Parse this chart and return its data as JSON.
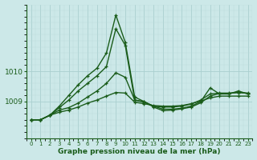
{
  "title": "Graphe pression niveau de la mer (hPa)",
  "bg_color": "#cce8e8",
  "grid_color_major": "#aacfcf",
  "grid_color_minor": "#bbdada",
  "line_color": "#1a5c1a",
  "xlim": [
    -0.5,
    23.5
  ],
  "ylim": [
    1007.8,
    1012.2
  ],
  "yticks": [
    1009,
    1010
  ],
  "xticks": [
    0,
    1,
    2,
    3,
    4,
    5,
    6,
    7,
    8,
    9,
    10,
    11,
    12,
    13,
    14,
    15,
    16,
    17,
    18,
    19,
    20,
    21,
    22,
    23
  ],
  "series": [
    [
      1008.4,
      1008.4,
      1008.55,
      1008.8,
      1009.05,
      1009.35,
      1009.6,
      1009.85,
      1010.15,
      1011.4,
      1010.85,
      1009.05,
      1009.0,
      1008.85,
      1008.75,
      1008.75,
      1008.78,
      1008.85,
      1009.0,
      1009.45,
      1009.25,
      1009.25,
      1009.35,
      1009.25
    ],
    [
      1008.4,
      1008.4,
      1008.55,
      1008.85,
      1009.2,
      1009.55,
      1009.85,
      1010.1,
      1010.6,
      1011.85,
      1010.95,
      1009.15,
      1009.0,
      1008.82,
      1008.7,
      1008.72,
      1008.76,
      1008.82,
      1008.96,
      1009.18,
      1009.27,
      1009.27,
      1009.3,
      1009.27
    ],
    [
      1008.4,
      1008.4,
      1008.55,
      1008.72,
      1008.8,
      1008.95,
      1009.15,
      1009.35,
      1009.6,
      1009.95,
      1009.8,
      1009.05,
      1008.98,
      1008.85,
      1008.82,
      1008.82,
      1008.85,
      1008.92,
      1009.05,
      1009.25,
      1009.28,
      1009.28,
      1009.3,
      1009.28
    ],
    [
      1008.4,
      1008.4,
      1008.55,
      1008.65,
      1008.72,
      1008.82,
      1008.95,
      1009.05,
      1009.18,
      1009.3,
      1009.28,
      1008.98,
      1008.93,
      1008.87,
      1008.85,
      1008.85,
      1008.87,
      1008.93,
      1009.02,
      1009.12,
      1009.18,
      1009.18,
      1009.18,
      1009.18
    ]
  ]
}
